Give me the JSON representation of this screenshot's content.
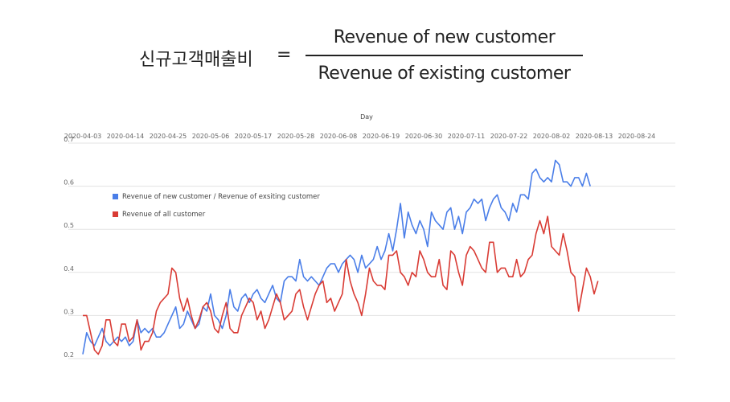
{
  "formula": {
    "label": "신규고객매출비",
    "equals": "=",
    "numerator": "Revenue of new customer",
    "denominator": "Revenue of existing customer"
  },
  "chart_data": {
    "type": "line",
    "xlabel": "Day",
    "x_ticks": [
      "2020-04-03",
      "2020-04-14",
      "2020-04-25",
      "2020-05-06",
      "2020-05-17",
      "2020-05-28",
      "2020-06-08",
      "2020-06-19",
      "2020-06-30",
      "2020-07-11",
      "2020-07-22",
      "2020-08-02",
      "2020-08-13",
      "2020-08-24"
    ],
    "y_ticks": [
      "0.7",
      "0.6",
      "0.5",
      "0.4",
      "0.3",
      "0.2"
    ],
    "ylim": [
      0.2,
      0.7
    ],
    "grid": true,
    "x_axis_position": "top",
    "legend_position": "top-left",
    "series": [
      {
        "name": "Revenue of new customer / Revenue of exsiting customer",
        "color": "#4a7ee8",
        "values": [
          0.21,
          0.26,
          0.24,
          0.23,
          0.25,
          0.27,
          0.24,
          0.23,
          0.24,
          0.25,
          0.24,
          0.25,
          0.23,
          0.24,
          0.29,
          0.26,
          0.27,
          0.26,
          0.27,
          0.25,
          0.25,
          0.26,
          0.28,
          0.3,
          0.32,
          0.27,
          0.28,
          0.31,
          0.29,
          0.27,
          0.28,
          0.32,
          0.31,
          0.35,
          0.3,
          0.29,
          0.27,
          0.3,
          0.36,
          0.32,
          0.31,
          0.34,
          0.35,
          0.33,
          0.35,
          0.36,
          0.34,
          0.33,
          0.35,
          0.37,
          0.34,
          0.33,
          0.38,
          0.39,
          0.39,
          0.38,
          0.43,
          0.39,
          0.38,
          0.39,
          0.38,
          0.37,
          0.39,
          0.41,
          0.42,
          0.42,
          0.4,
          0.42,
          0.43,
          0.44,
          0.43,
          0.4,
          0.44,
          0.41,
          0.42,
          0.43,
          0.46,
          0.43,
          0.45,
          0.49,
          0.45,
          0.5,
          0.56,
          0.48,
          0.54,
          0.51,
          0.49,
          0.52,
          0.5,
          0.46,
          0.54,
          0.52,
          0.51,
          0.5,
          0.54,
          0.55,
          0.5,
          0.53,
          0.49,
          0.54,
          0.55,
          0.57,
          0.56,
          0.57,
          0.52,
          0.55,
          0.57,
          0.58,
          0.55,
          0.54,
          0.52,
          0.56,
          0.54,
          0.58,
          0.58,
          0.57,
          0.63,
          0.64,
          0.62,
          0.61,
          0.62,
          0.61,
          0.66,
          0.65,
          0.61,
          0.61,
          0.6,
          0.62,
          0.62,
          0.6,
          0.63,
          0.6
        ]
      },
      {
        "name": "Revenue of all customer",
        "color": "#d93b34",
        "values": [
          0.3,
          0.3,
          0.26,
          0.22,
          0.21,
          0.23,
          0.29,
          0.29,
          0.24,
          0.23,
          0.28,
          0.28,
          0.24,
          0.25,
          0.29,
          0.22,
          0.24,
          0.24,
          0.26,
          0.31,
          0.33,
          0.34,
          0.35,
          0.41,
          0.4,
          0.34,
          0.31,
          0.34,
          0.3,
          0.27,
          0.29,
          0.32,
          0.33,
          0.31,
          0.27,
          0.26,
          0.3,
          0.33,
          0.27,
          0.26,
          0.26,
          0.3,
          0.32,
          0.34,
          0.33,
          0.29,
          0.31,
          0.27,
          0.29,
          0.32,
          0.35,
          0.33,
          0.29,
          0.3,
          0.31,
          0.35,
          0.36,
          0.32,
          0.29,
          0.32,
          0.35,
          0.37,
          0.38,
          0.33,
          0.34,
          0.31,
          0.33,
          0.35,
          0.43,
          0.38,
          0.35,
          0.33,
          0.3,
          0.35,
          0.41,
          0.38,
          0.37,
          0.37,
          0.36,
          0.44,
          0.44,
          0.45,
          0.4,
          0.39,
          0.37,
          0.4,
          0.39,
          0.45,
          0.43,
          0.4,
          0.39,
          0.39,
          0.43,
          0.37,
          0.36,
          0.45,
          0.44,
          0.4,
          0.37,
          0.44,
          0.46,
          0.45,
          0.43,
          0.41,
          0.4,
          0.47,
          0.47,
          0.4,
          0.41,
          0.41,
          0.39,
          0.39,
          0.43,
          0.39,
          0.4,
          0.43,
          0.44,
          0.49,
          0.52,
          0.49,
          0.53,
          0.46,
          0.45,
          0.44,
          0.49,
          0.45,
          0.4,
          0.39,
          0.31,
          0.36,
          0.41,
          0.39,
          0.35,
          0.38
        ]
      }
    ]
  }
}
